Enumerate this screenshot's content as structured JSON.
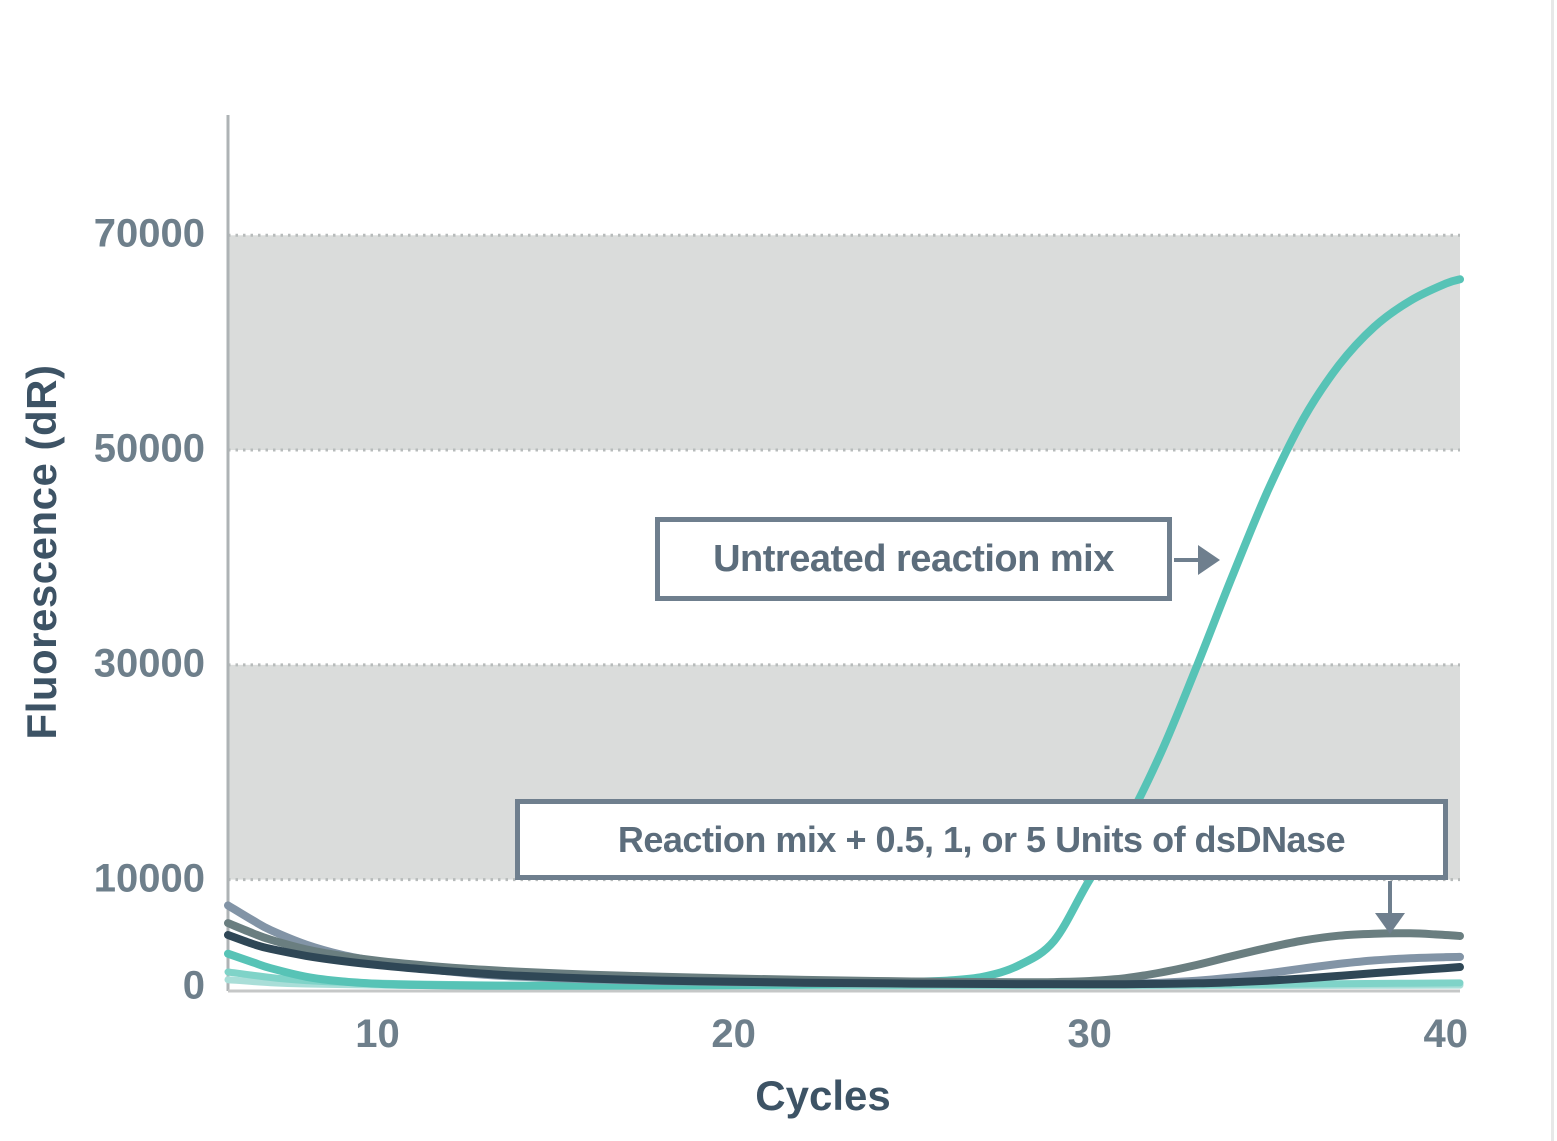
{
  "figure": {
    "x_axis_title": "Cycles",
    "y_axis_title": "Fluorescence (dR)",
    "callouts": {
      "untreated_label": "Untreated reaction mix",
      "treated_label": "Reaction mix + 0.5, 1, or 5 Units of dsDNase"
    }
  },
  "colors": {
    "band": "#dadcdb",
    "dotted_grid": "#b7bbbb",
    "y_axis_line": "#aeb3b5",
    "baseline": "#c5c7c7",
    "tick_label": "#6e7f8b",
    "axis_title": "#3d5365",
    "callout_border": "#6f7f8e",
    "callout_text": "#5c6d7c",
    "arrow": "#6f7f8e",
    "untreated_teal": "#57c3b6",
    "treated_blue_gray": "#8294a6",
    "treated_gray_green": "#6a7e80",
    "treated_dark_navy": "#2f4756",
    "treated_light_teal": "#7fd3c8",
    "treated_lightest_teal": "#a9ded8"
  },
  "chart_data": {
    "type": "line",
    "title": "",
    "xlabel": "Cycles",
    "ylabel": "Fluorescence (dR)",
    "xlim": [
      5.8,
      40.4
    ],
    "ylim": [
      0,
      81200
    ],
    "x_ticks": [
      10,
      20,
      30,
      40
    ],
    "y_ticks": [
      0,
      10000,
      30000,
      50000,
      70000
    ],
    "grid": "dotted horizontal lines at 10000, 30000, 50000, 70000",
    "shaded_bands_y": [
      [
        10000,
        30000
      ],
      [
        50000,
        70000
      ]
    ],
    "legend_position": "none",
    "series": [
      {
        "name": "lightest-teal dsDNase-treated curve",
        "color_key": "treated_lightest_teal",
        "width": 7,
        "points": [
          [
            5.8,
            680
          ],
          [
            7,
            400
          ],
          [
            8,
            280
          ],
          [
            10,
            175
          ],
          [
            12,
            120
          ],
          [
            14,
            100
          ],
          [
            18,
            90
          ],
          [
            22,
            92
          ],
          [
            26,
            100
          ],
          [
            30,
            110
          ],
          [
            34,
            130
          ],
          [
            38,
            160
          ],
          [
            40.4,
            180
          ]
        ]
      },
      {
        "name": "light-teal dsDNase-treated curve",
        "color_key": "treated_light_teal",
        "width": 7,
        "points": [
          [
            5.8,
            1400
          ],
          [
            7,
            880
          ],
          [
            8,
            600
          ],
          [
            9,
            440
          ],
          [
            10,
            350
          ],
          [
            12,
            230
          ],
          [
            14,
            170
          ],
          [
            16,
            145
          ],
          [
            18,
            135
          ],
          [
            20,
            130
          ],
          [
            24,
            140
          ],
          [
            28,
            160
          ],
          [
            32,
            200
          ],
          [
            36,
            280
          ],
          [
            39,
            350
          ],
          [
            40.4,
            385
          ]
        ]
      },
      {
        "name": "Untreated reaction mix (amplifying curve)",
        "color_key": "untreated_teal",
        "width": 8,
        "points": [
          [
            5.8,
            3100
          ],
          [
            6.5,
            2300
          ],
          [
            7,
            1750
          ],
          [
            8,
            950
          ],
          [
            9,
            520
          ],
          [
            10,
            300
          ],
          [
            11,
            200
          ],
          [
            12,
            150
          ],
          [
            13,
            120
          ],
          [
            14,
            110
          ],
          [
            16,
            120
          ],
          [
            18,
            140
          ],
          [
            20,
            180
          ],
          [
            22,
            250
          ],
          [
            24,
            380
          ],
          [
            25,
            480
          ],
          [
            26,
            600
          ],
          [
            27,
            950
          ],
          [
            28,
            2000
          ],
          [
            29,
            4300
          ],
          [
            30,
            10000
          ],
          [
            31,
            15100
          ],
          [
            32,
            21800
          ],
          [
            33,
            29800
          ],
          [
            34,
            38200
          ],
          [
            35,
            46200
          ],
          [
            36,
            52900
          ],
          [
            37,
            57900
          ],
          [
            38,
            61500
          ],
          [
            39,
            63900
          ],
          [
            40,
            65500
          ],
          [
            40.4,
            65900
          ]
        ]
      },
      {
        "name": "blue-gray dsDNase-treated curve",
        "color_key": "treated_blue_gray",
        "width": 8,
        "points": [
          [
            5.8,
            7600
          ],
          [
            6.5,
            6200
          ],
          [
            7,
            5300
          ],
          [
            8,
            3950
          ],
          [
            9,
            3000
          ],
          [
            10,
            2350
          ],
          [
            11,
            1850
          ],
          [
            12,
            1450
          ],
          [
            13,
            1150
          ],
          [
            14,
            950
          ],
          [
            16,
            720
          ],
          [
            18,
            560
          ],
          [
            20,
            460
          ],
          [
            22,
            380
          ],
          [
            24,
            330
          ],
          [
            26,
            300
          ],
          [
            28,
            285
          ],
          [
            30,
            290
          ],
          [
            31,
            320
          ],
          [
            32,
            400
          ],
          [
            33,
            580
          ],
          [
            34,
            880
          ],
          [
            35,
            1280
          ],
          [
            36,
            1730
          ],
          [
            37,
            2150
          ],
          [
            38,
            2480
          ],
          [
            39,
            2680
          ],
          [
            40,
            2780
          ],
          [
            40.4,
            2800
          ]
        ]
      },
      {
        "name": "gray-green dsDNase-treated curve",
        "color_key": "treated_gray_green",
        "width": 8,
        "points": [
          [
            5.8,
            5950
          ],
          [
            6.5,
            5000
          ],
          [
            7,
            4400
          ],
          [
            8,
            3500
          ],
          [
            9,
            2900
          ],
          [
            10,
            2450
          ],
          [
            11,
            2100
          ],
          [
            12,
            1820
          ],
          [
            13,
            1600
          ],
          [
            14,
            1420
          ],
          [
            16,
            1150
          ],
          [
            18,
            950
          ],
          [
            20,
            790
          ],
          [
            22,
            660
          ],
          [
            24,
            560
          ],
          [
            26,
            480
          ],
          [
            28,
            440
          ],
          [
            29,
            460
          ],
          [
            30,
            560
          ],
          [
            31,
            820
          ],
          [
            32,
            1350
          ],
          [
            33,
            2050
          ],
          [
            34,
            2870
          ],
          [
            35,
            3650
          ],
          [
            36,
            4330
          ],
          [
            37,
            4780
          ],
          [
            38,
            4960
          ],
          [
            39,
            5000
          ],
          [
            39.7,
            4900
          ],
          [
            40.4,
            4750
          ]
        ]
      },
      {
        "name": "dark-navy dsDNase-treated curve",
        "color_key": "treated_dark_navy",
        "width": 8,
        "points": [
          [
            5.8,
            4840
          ],
          [
            6.5,
            4000
          ],
          [
            7,
            3550
          ],
          [
            8,
            2900
          ],
          [
            9,
            2420
          ],
          [
            10,
            2050
          ],
          [
            11,
            1730
          ],
          [
            12,
            1460
          ],
          [
            13,
            1230
          ],
          [
            14,
            1040
          ],
          [
            16,
            780
          ],
          [
            18,
            600
          ],
          [
            20,
            480
          ],
          [
            22,
            400
          ],
          [
            24,
            340
          ],
          [
            26,
            300
          ],
          [
            28,
            270
          ],
          [
            30,
            260
          ],
          [
            31,
            265
          ],
          [
            32,
            290
          ],
          [
            33,
            340
          ],
          [
            34,
            440
          ],
          [
            35,
            590
          ],
          [
            36,
            790
          ],
          [
            37,
            1030
          ],
          [
            38,
            1290
          ],
          [
            39,
            1530
          ],
          [
            40,
            1760
          ],
          [
            40.4,
            1860
          ]
        ]
      }
    ],
    "annotations": [
      {
        "text": "Untreated reaction mix",
        "arrow": "right, pointing at rising teal curve near 40000 dR"
      },
      {
        "text": "Reaction mix + 0.5, 1, or 5 Units of dsDNase",
        "arrow": "down, pointing at flat treated curves near 5000 dR"
      }
    ]
  }
}
